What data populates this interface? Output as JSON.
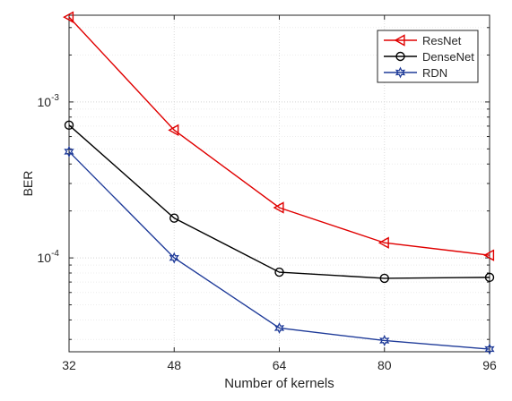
{
  "chart_data": {
    "type": "line",
    "title": "",
    "xlabel": "Number of kernels",
    "ylabel": "BER",
    "y_scale": "log",
    "xlim": [
      32,
      96
    ],
    "ylim": [
      2.5e-05,
      0.0036
    ],
    "grid": "on",
    "legend_position": "top-right",
    "x": [
      32,
      48,
      64,
      80,
      96
    ],
    "x_tick_labels": [
      "32",
      "48",
      "64",
      "80",
      "96"
    ],
    "y_ticks": [
      {
        "value": 0.001,
        "base": "10",
        "exp": "-3"
      },
      {
        "value": 0.0001,
        "base": "10",
        "exp": "-4"
      }
    ],
    "series": [
      {
        "name": "ResNet",
        "color": "#e00000",
        "marker": "triangle-left",
        "values": [
          0.0035,
          0.00066,
          0.00021,
          0.000125,
          0.000104
        ]
      },
      {
        "name": "DenseNet",
        "color": "#000000",
        "marker": "circle",
        "values": [
          0.00071,
          0.00018,
          8.1e-05,
          7.4e-05,
          7.5e-05
        ]
      },
      {
        "name": "RDN",
        "color": "#1f3b99",
        "marker": "hexagram",
        "values": [
          0.00048,
          0.0001,
          3.55e-05,
          2.95e-05,
          2.6e-05
        ]
      }
    ]
  }
}
